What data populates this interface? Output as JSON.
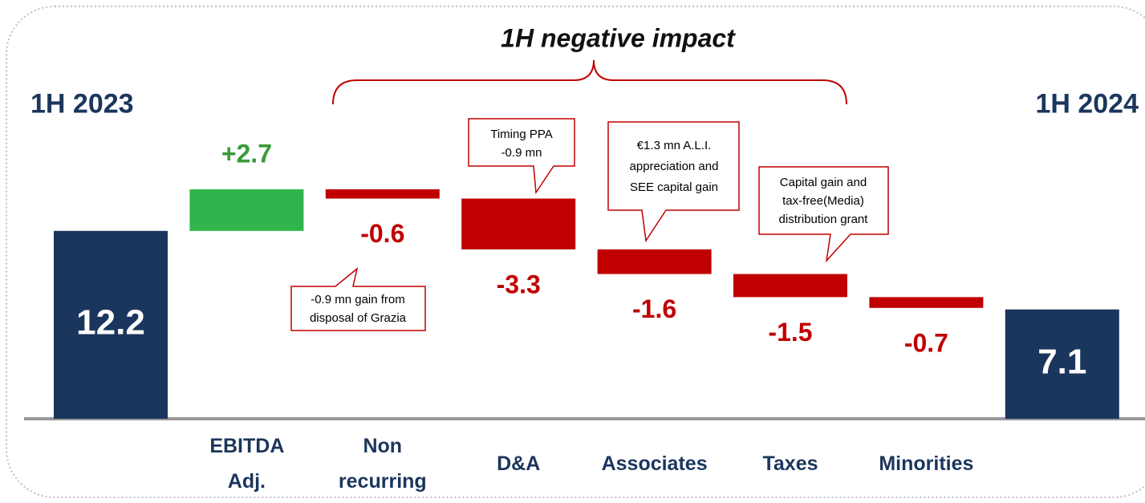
{
  "chart_data": {
    "type": "waterfall",
    "title": "1H negative impact",
    "categories": [
      "1H 2023",
      "EBITDA Adj.",
      "Non recurring",
      "D&A",
      "Associates",
      "Taxes",
      "Minorities",
      "1H 2024"
    ],
    "values": [
      12.2,
      2.7,
      -0.6,
      -3.3,
      -1.6,
      -1.5,
      -0.7,
      7.1
    ],
    "value_labels": [
      "12.2",
      "+2.7",
      "-0.6",
      "-3.3",
      "-1.6",
      "-1.5",
      "-0.7",
      "7.1"
    ],
    "colors": {
      "total": "#1b365d",
      "increase": "#2fb54c",
      "decrease": "#c00000"
    },
    "annotations": [
      {
        "lines": [
          "-0.9 mn gain from",
          "disposal of Grazia"
        ]
      },
      {
        "lines": [
          "Timing PPA",
          "-0.9 mn"
        ]
      },
      {
        "lines": [
          "€1.3 mn  A.L.I.",
          "appreciation and",
          "SEE capital gain"
        ]
      },
      {
        "lines": [
          "Capital gain and",
          "tax-free(Media)",
          "distribution grant"
        ]
      }
    ]
  }
}
